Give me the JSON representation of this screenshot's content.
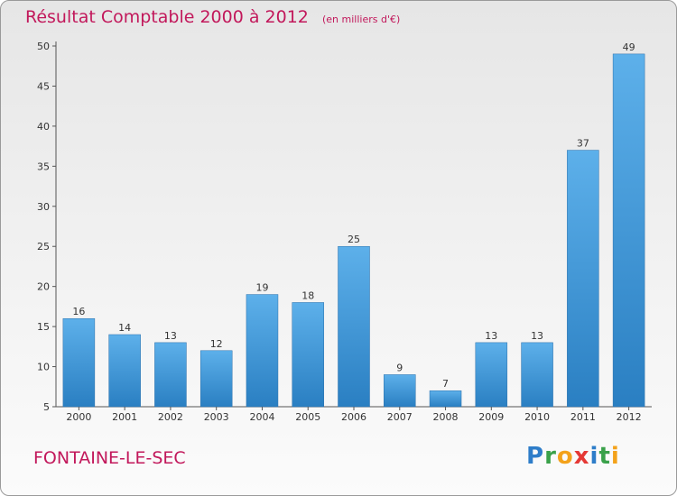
{
  "header": {
    "title": "Résultat Comptable 2000 à 2012",
    "unit": "(en milliers d'€)"
  },
  "footer": {
    "commune": "FONTAINE-LE-SEC",
    "logo_letters": [
      {
        "char": "P",
        "color": "#2e7dc9"
      },
      {
        "char": "r",
        "color": "#3aa14a"
      },
      {
        "char": "o",
        "color": "#f3a21b"
      },
      {
        "char": "x",
        "color": "#e53935"
      },
      {
        "char": "i",
        "color": "#2e7dc9"
      },
      {
        "char": "t",
        "color": "#3aa14a"
      },
      {
        "char": "i",
        "color": "#f3a21b"
      }
    ]
  },
  "colors": {
    "bar_top": "#5db0ea",
    "bar_bottom": "#2a7fc2",
    "accent": "#c2185b"
  },
  "chart_data": {
    "type": "bar",
    "title": "Résultat Comptable 2000 à 2012",
    "subtitle": "(en milliers d'€)",
    "categories": [
      "2000",
      "2001",
      "2002",
      "2003",
      "2004",
      "2005",
      "2006",
      "2007",
      "2008",
      "2009",
      "2010",
      "2011",
      "2012"
    ],
    "values": [
      16,
      14,
      13,
      12,
      19,
      18,
      25,
      9,
      7,
      13,
      13,
      37,
      49
    ],
    "ylim": [
      5,
      50
    ],
    "yticks": [
      5,
      10,
      15,
      20,
      25,
      30,
      35,
      40,
      45,
      50
    ],
    "grid": false,
    "data_labels": true
  }
}
